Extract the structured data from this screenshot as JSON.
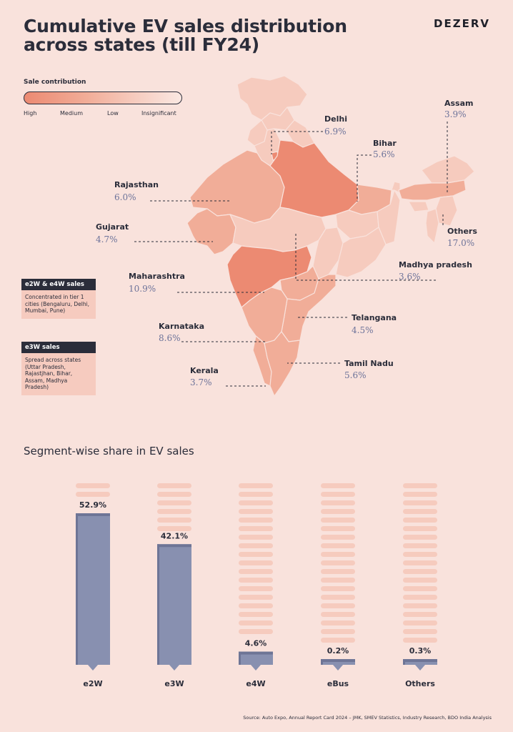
{
  "title": "Cumulative EV sales distribution across states (till FY24)",
  "brand": "DEZERV",
  "legend": {
    "title": "Sale contribution",
    "labels": [
      "High",
      "Medium",
      "Low",
      "Insignificant"
    ]
  },
  "states": [
    {
      "name": "Delhi",
      "value": "6.9%"
    },
    {
      "name": "Assam",
      "value": "3.9%"
    },
    {
      "name": "Bihar",
      "value": "5.6%"
    },
    {
      "name": "Rajasthan",
      "value": "6.0%"
    },
    {
      "name": "Gujarat",
      "value": "4.7%"
    },
    {
      "name": "Others",
      "value": "17.0%"
    },
    {
      "name": "Madhya pradesh",
      "value": "3.6%"
    },
    {
      "name": "Maharashtra",
      "value": "10.9%"
    },
    {
      "name": "Telangana",
      "value": "4.5%"
    },
    {
      "name": "Karnataka",
      "value": "8.6%"
    },
    {
      "name": "Tamil Nadu",
      "value": "5.6%"
    },
    {
      "name": "Kerala",
      "value": "3.7%"
    }
  ],
  "boxes": [
    {
      "head": "e2W & e4W sales",
      "body": "Concentrated in tier 1 cities (Bengaluru, Delhi, Mumbai, Pune)"
    },
    {
      "head": "e3W sales",
      "body": "Spread across states (Uttar Pradesh, Rajastjhan, Bihar, Assam, Madhya Pradesh)"
    }
  ],
  "segment_title": "Segment-wise share in EV sales",
  "chart_data": {
    "type": "bar",
    "title": "Segment-wise share in EV sales",
    "categories": [
      "e2W",
      "e3W",
      "e4W",
      "eBus",
      "Others"
    ],
    "values": [
      52.9,
      42.1,
      4.6,
      0.2,
      0.3
    ],
    "labels": [
      "52.9%",
      "42.1%",
      "4.6%",
      "0.2%",
      "0.3%"
    ],
    "ylim": [
      0,
      60
    ],
    "grid": false,
    "bar_color": "#8890b0"
  },
  "colors": {
    "high": "#ec8a72",
    "medium": "#f1ad98",
    "low": "#f6cbbe",
    "insignificant": "#fbe8e2",
    "background": "#f9e2dc",
    "bar": "#8890b0",
    "text": "#2b2d3a"
  },
  "source": "Source: Auto Expo, Annual Report Card 2024 – JMK, SMEV Statistics, Industry Research, BDO India Analysis"
}
